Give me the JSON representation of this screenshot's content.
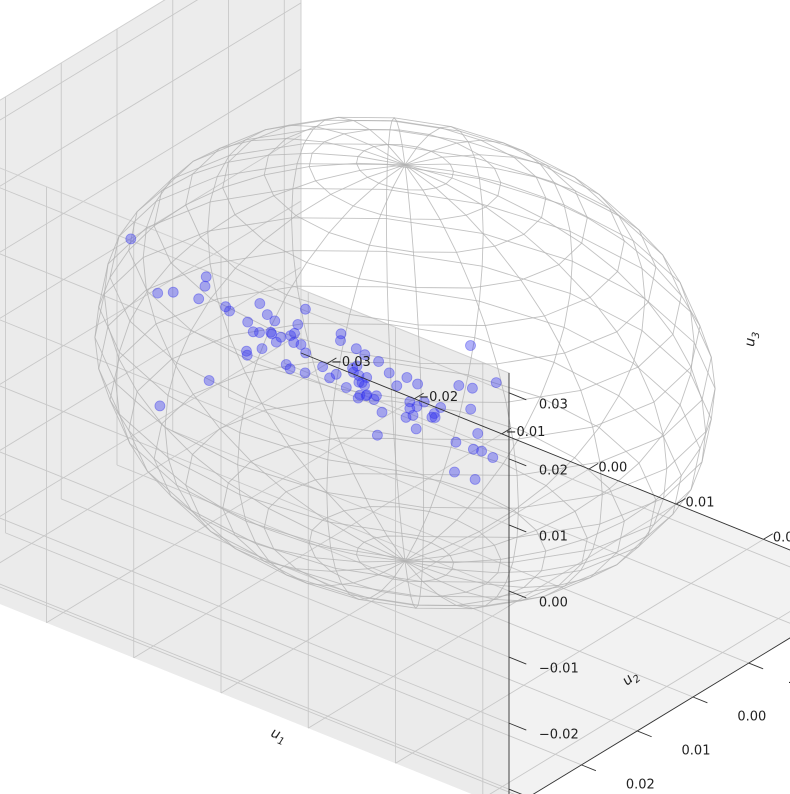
{
  "chart_data": {
    "type": "scatter",
    "projection": "3d",
    "title": "",
    "xlabel": "u",
    "xlabel_sub": "1",
    "ylabel": "u",
    "ylabel_sub": "2",
    "zlabel": "u",
    "zlabel_sub": "3",
    "xlim": [
      -0.033,
      0.033
    ],
    "ylim": [
      -0.033,
      0.033
    ],
    "zlim": [
      -0.033,
      0.033
    ],
    "ticks": [
      -0.03,
      -0.02,
      -0.01,
      0.0,
      0.01,
      0.02,
      0.03
    ],
    "tick_labels": [
      "−0.03",
      "−0.02",
      "−0.01",
      "0.00",
      "0.01",
      "0.02",
      "0.03"
    ],
    "grid": true,
    "wireframe_sphere": {
      "radius": 0.03,
      "color": "#b3b3b3"
    },
    "marker_color": "#3333ee",
    "series": [
      {
        "values": [
          {
            "x": -0.018,
            "y": 0.021,
            "z": 0.02
          },
          {
            "x": -0.013,
            "y": 0.024,
            "z": 0.016
          },
          {
            "x": -0.01,
            "y": 0.02,
            "z": 0.018
          },
          {
            "x": -0.003,
            "y": 0.02,
            "z": 0.016
          },
          {
            "x": -0.004,
            "y": 0.016,
            "z": 0.01
          },
          {
            "x": 0.002,
            "y": 0.021,
            "z": 0.02
          },
          {
            "x": 0.008,
            "y": 0.024,
            "z": 0.021
          },
          {
            "x": 0.012,
            "y": 0.026,
            "z": 0.021
          },
          {
            "x": 0.01,
            "y": 0.028,
            "z": 0.018
          },
          {
            "x": 0.014,
            "y": 0.03,
            "z": 0.018
          },
          {
            "x": 0.018,
            "y": 0.031,
            "z": 0.024
          },
          {
            "x": 0.016,
            "y": 0.032,
            "z": 0.02
          },
          {
            "x": 0.016,
            "y": 0.03,
            "z": 0.013
          },
          {
            "x": 0.019,
            "y": 0.018,
            "z": 0.022
          },
          {
            "x": 0.013,
            "y": 0.02,
            "z": 0.015
          },
          {
            "x": 0.006,
            "y": 0.018,
            "z": 0.012
          },
          {
            "x": 0.004,
            "y": 0.015,
            "z": 0.012
          },
          {
            "x": 0.008,
            "y": 0.014,
            "z": 0.008
          },
          {
            "x": 0.004,
            "y": 0.011,
            "z": 0.008
          },
          {
            "x": 0.002,
            "y": 0.01,
            "z": 0.004
          },
          {
            "x": -0.001,
            "y": 0.01,
            "z": 0.008
          },
          {
            "x": -0.005,
            "y": 0.012,
            "z": 0.008
          },
          {
            "x": -0.005,
            "y": 0.01,
            "z": 0.004
          },
          {
            "x": -0.008,
            "y": 0.008,
            "z": 0.004
          },
          {
            "x": -0.009,
            "y": 0.01,
            "z": 0.005
          },
          {
            "x": -0.009,
            "y": 0.012,
            "z": 0.006
          },
          {
            "x": -0.011,
            "y": 0.011,
            "z": 0.006
          },
          {
            "x": -0.011,
            "y": 0.01,
            "z": 0.004
          },
          {
            "x": -0.009,
            "y": 0.009,
            "z": 0.003
          },
          {
            "x": -0.007,
            "y": 0.009,
            "z": 0.004
          },
          {
            "x": -0.01,
            "y": 0.01,
            "z": 0.002
          },
          {
            "x": -0.015,
            "y": 0.008,
            "z": 0.004
          },
          {
            "x": -0.018,
            "y": 0.004,
            "z": 0.001
          },
          {
            "x": -0.014,
            "y": 0.002,
            "z": -0.002
          },
          {
            "x": -0.016,
            "y": 0.001,
            "z": 0.001
          },
          {
            "x": -0.011,
            "y": 0.002,
            "z": 0.001
          },
          {
            "x": -0.01,
            "y": 0.003,
            "z": -0.001
          },
          {
            "x": -0.013,
            "y": 0.003,
            "z": 0.001
          },
          {
            "x": -0.021,
            "y": 0.003,
            "z": 0.002
          },
          {
            "x": -0.024,
            "y": 0.004,
            "z": 0.0
          },
          {
            "x": -0.023,
            "y": 0.001,
            "z": -0.002
          },
          {
            "x": -0.006,
            "y": 0.0,
            "z": -0.004
          },
          {
            "x": -0.008,
            "y": 0.001,
            "z": -0.006
          },
          {
            "x": -0.004,
            "y": 0.001,
            "z": -0.005
          },
          {
            "x": -0.004,
            "y": 0.003,
            "z": -0.002
          },
          {
            "x": -0.004,
            "y": 0.002,
            "z": -0.003
          },
          {
            "x": -0.003,
            "y": 0.003,
            "z": -0.003
          },
          {
            "x": -0.004,
            "y": 0.002,
            "z": -0.004
          },
          {
            "x": -0.001,
            "y": 0.004,
            "z": -0.004
          },
          {
            "x": -0.002,
            "y": 0.002,
            "z": -0.005
          },
          {
            "x": -0.002,
            "y": 0.001,
            "z": -0.008
          },
          {
            "x": -0.005,
            "y": -0.001,
            "z": -0.008
          },
          {
            "x": -0.006,
            "y": -0.001,
            "z": -0.009
          },
          {
            "x": -0.008,
            "y": -0.002,
            "z": -0.009
          },
          {
            "x": -0.012,
            "y": -0.004,
            "z": -0.009
          },
          {
            "x": -0.014,
            "y": -0.004,
            "z": -0.011
          },
          {
            "x": -0.02,
            "y": -0.003,
            "z": -0.011
          },
          {
            "x": -0.022,
            "y": -0.006,
            "z": -0.013
          },
          {
            "x": -0.02,
            "y": -0.01,
            "z": -0.016
          },
          {
            "x": -0.017,
            "y": -0.006,
            "z": -0.013
          },
          {
            "x": -0.025,
            "y": -0.004,
            "z": -0.018
          },
          {
            "x": -0.005,
            "y": -0.008,
            "z": -0.015
          },
          {
            "x": -0.001,
            "y": -0.005,
            "z": -0.009
          },
          {
            "x": -0.002,
            "y": -0.004,
            "z": -0.009
          },
          {
            "x": -0.002,
            "y": -0.004,
            "z": -0.01
          },
          {
            "x": -0.001,
            "y": -0.003,
            "z": -0.01
          },
          {
            "x": 0.0,
            "y": -0.002,
            "z": -0.011
          },
          {
            "x": 0.002,
            "y": -0.006,
            "z": -0.014
          },
          {
            "x": 0.004,
            "y": -0.006,
            "z": -0.014
          },
          {
            "x": 0.002,
            "y": 0.001,
            "z": -0.005
          },
          {
            "x": 0.004,
            "y": 0.001,
            "z": -0.005
          },
          {
            "x": 0.005,
            "y": 0.003,
            "z": -0.004
          },
          {
            "x": 0.006,
            "y": 0.003,
            "z": -0.002
          },
          {
            "x": 0.006,
            "y": 0.004,
            "z": -0.003
          },
          {
            "x": 0.004,
            "y": 0.004,
            "z": 0.001
          },
          {
            "x": 0.009,
            "y": 0.002,
            "z": 0.002
          },
          {
            "x": 0.01,
            "y": 0.006,
            "z": 0.005
          },
          {
            "x": 0.013,
            "y": 0.004,
            "z": 0.006
          },
          {
            "x": 0.012,
            "y": 0.007,
            "z": 0.003
          },
          {
            "x": 0.016,
            "y": 0.012,
            "z": 0.004
          },
          {
            "x": 0.019,
            "y": 0.016,
            "z": 0.005
          },
          {
            "x": 0.021,
            "y": 0.024,
            "z": 0.007
          },
          {
            "x": 0.024,
            "y": 0.025,
            "z": 0.008
          },
          {
            "x": 0.019,
            "y": 0.014,
            "z": 0.003
          },
          {
            "x": -0.03,
            "y": -0.003,
            "z": -0.024
          }
        ]
      }
    ]
  }
}
